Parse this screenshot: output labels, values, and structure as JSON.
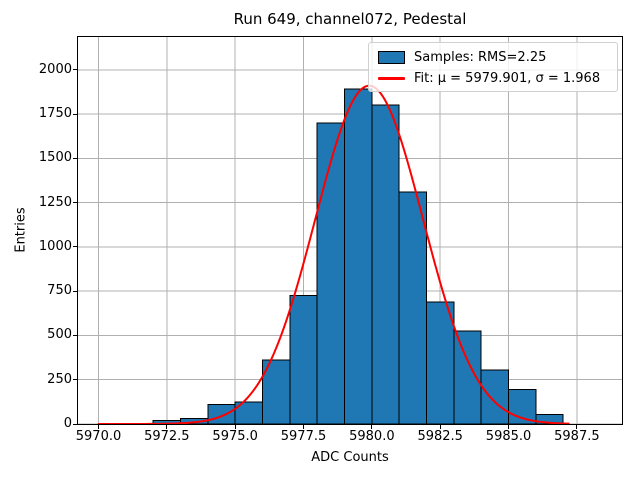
{
  "chart_data": {
    "type": "histogram",
    "title": "Run 649, channel072, Pedestal",
    "xlabel": "ADC Counts",
    "ylabel": "Entries",
    "xlim": [
      5969.25,
      5989.15
    ],
    "ylim": [
      0,
      2185
    ],
    "grid": true,
    "legend_position": "upper right",
    "xticks": [
      5970,
      5972.5,
      5975,
      5977.5,
      5980,
      5982.5,
      5985,
      5987.5
    ],
    "xtick_labels": [
      "5970.0",
      "5972.5",
      "5975.0",
      "5977.5",
      "5980.0",
      "5982.5",
      "5985.0",
      "5987.5"
    ],
    "yticks": [
      0,
      250,
      500,
      750,
      1000,
      1250,
      1500,
      1750,
      2000
    ],
    "ytick_labels": [
      "0",
      "250",
      "500",
      "750",
      "1000",
      "1250",
      "1500",
      "1750",
      "2000"
    ],
    "colors": {
      "bar_fill": "#1f77b4",
      "bar_edge": "#000000",
      "fit_line": "#ff0000",
      "grid_line": "#b0b0b0",
      "spine": "#000000"
    },
    "histogram": {
      "bin_start": 5972,
      "bin_width": 1,
      "counts": [
        20,
        30,
        110,
        125,
        360,
        725,
        1700,
        1890,
        1800,
        1310,
        690,
        525,
        305,
        195,
        55
      ]
    },
    "fit_curve": {
      "shape": "gaussian",
      "mu": 5979.901,
      "sigma": 1.968,
      "amplitude": 1910,
      "x_start": 5970,
      "x_end": 5987.2
    },
    "legend": {
      "samples_label": "Samples: RMS=2.25",
      "fit_label": "Fit: μ = 5979.901, σ = 1.968"
    }
  }
}
